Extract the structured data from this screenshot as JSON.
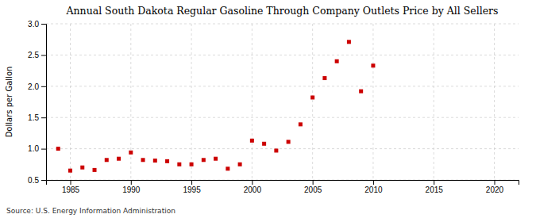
{
  "chart_data": {
    "type": "scatter",
    "title": "Annual South Dakota Regular Gasoline Through Company Outlets Price by All Sellers",
    "ylabel": "Dollars per Gallon",
    "source": "Source: U.S. Energy Information Administration",
    "x": [
      1984,
      1985,
      1986,
      1987,
      1988,
      1989,
      1990,
      1991,
      1992,
      1993,
      1994,
      1995,
      1996,
      1997,
      1998,
      1999,
      2000,
      2001,
      2002,
      2003,
      2004,
      2005,
      2006,
      2007,
      2008,
      2009,
      2010
    ],
    "values": [
      1.0,
      0.65,
      0.7,
      0.66,
      0.82,
      0.84,
      0.94,
      0.82,
      0.81,
      0.8,
      0.75,
      0.75,
      0.82,
      0.84,
      0.68,
      0.75,
      1.13,
      1.08,
      0.97,
      1.11,
      1.39,
      1.82,
      2.13,
      2.4,
      2.71,
      1.92,
      2.33
    ],
    "color": "#cc0000",
    "marker": "square",
    "xlim": [
      1983,
      2022
    ],
    "ylim": [
      0.5,
      3.0
    ],
    "xticks": [
      1985,
      1990,
      1995,
      2000,
      2005,
      2010,
      2015,
      2020
    ],
    "yticks": [
      0.5,
      {
        "value": 1.0,
        "label": "1.0"
      },
      1.5,
      {
        "value": 2.0,
        "label": "2.0"
      },
      2.5,
      {
        "value": 3.0,
        "label": "3.0"
      }
    ],
    "grid": true
  }
}
